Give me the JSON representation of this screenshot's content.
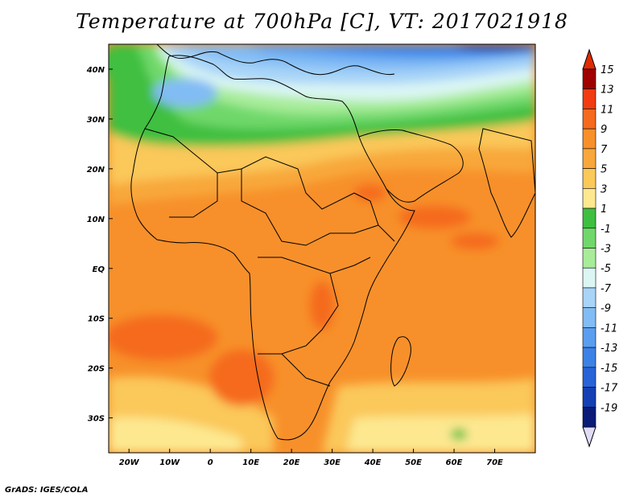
{
  "title": "Temperature at 700hPa [C], VT: 2017021918",
  "credit": "GrADS: IGES/COLA",
  "map": {
    "lon_range": [
      -25,
      80
    ],
    "lat_range": [
      -37,
      45
    ],
    "lat_ticks": [
      {
        "value": 40,
        "label": "40N"
      },
      {
        "value": 30,
        "label": "30N"
      },
      {
        "value": 20,
        "label": "20N"
      },
      {
        "value": 10,
        "label": "10N"
      },
      {
        "value": 0,
        "label": "EQ"
      },
      {
        "value": -10,
        "label": "10S"
      },
      {
        "value": -20,
        "label": "20S"
      },
      {
        "value": -30,
        "label": "30S"
      }
    ],
    "lon_ticks": [
      {
        "value": -20,
        "label": "20W"
      },
      {
        "value": -10,
        "label": "10W"
      },
      {
        "value": 0,
        "label": "0"
      },
      {
        "value": 10,
        "label": "10E"
      },
      {
        "value": 20,
        "label": "20E"
      },
      {
        "value": 30,
        "label": "30E"
      },
      {
        "value": 40,
        "label": "40E"
      },
      {
        "value": 50,
        "label": "50E"
      },
      {
        "value": 60,
        "label": "60E"
      },
      {
        "value": 70,
        "label": "70E"
      }
    ]
  },
  "colorbar": {
    "levels": [
      {
        "label": "15",
        "color": "#a00000"
      },
      {
        "label": "13",
        "color": "#f03c10"
      },
      {
        "label": "11",
        "color": "#f56a1e"
      },
      {
        "label": "9",
        "color": "#f7902a"
      },
      {
        "label": "7",
        "color": "#f8a83a"
      },
      {
        "label": "5",
        "color": "#fbc85a"
      },
      {
        "label": "3",
        "color": "#fde890"
      },
      {
        "label": "1",
        "color": "#3fbf3f"
      },
      {
        "label": "-1",
        "color": "#70d86a"
      },
      {
        "label": "-3",
        "color": "#a8ec9a"
      },
      {
        "label": "-5",
        "color": "#dcf6f4"
      },
      {
        "label": "-7",
        "color": "#a8d4f8"
      },
      {
        "label": "-9",
        "color": "#82bcf4"
      },
      {
        "label": "-11",
        "color": "#5a9ef0"
      },
      {
        "label": "-13",
        "color": "#3c82e6"
      },
      {
        "label": "-15",
        "color": "#2864d8"
      },
      {
        "label": "-17",
        "color": "#1440b4"
      },
      {
        "label": "-19",
        "color": "#0a1c78"
      }
    ],
    "top_arrow_color": "#e02a00",
    "bottom_arrow_color": "#e0dcf8"
  }
}
